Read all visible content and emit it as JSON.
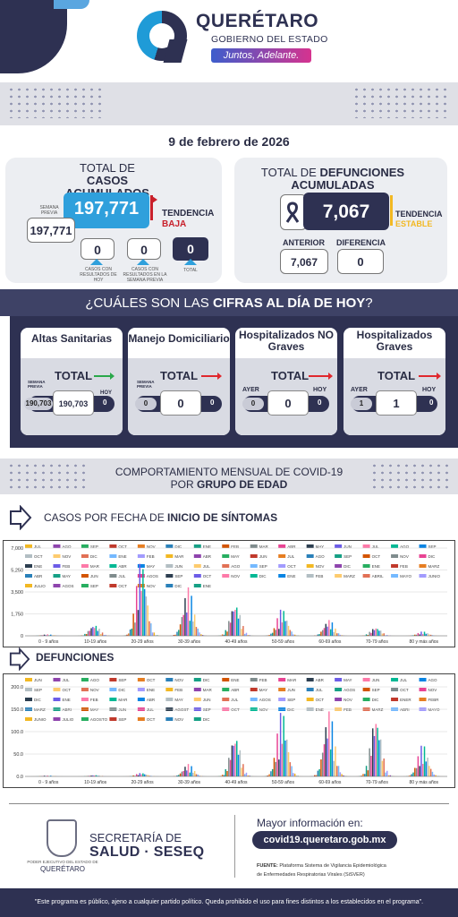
{
  "header": {
    "brand": "QUERÉTARO",
    "subtitle": "GOBIERNO DEL ESTADO",
    "slogan": "Juntos, Adelante."
  },
  "date": "9 de febrero de 2026",
  "casos": {
    "title_line1": "TOTAL DE",
    "title_line2": "CASOS ACUMULADOS",
    "main_value": "197,771",
    "semana_previa_label": "SEMANA PREVIA",
    "semana_previa_value": "197,771",
    "tendencia_label": "TENDENCIA",
    "tendencia_value": "BAJA",
    "con_resultados_hoy": "0",
    "con_resultados_label": "CASOS CON RESULTADOS DE HOY",
    "semana_previa_resultados": "0",
    "semana_previa_resultados_label": "CASOS CON RESULTADOS EN LA SEMANA PREVIA",
    "total": "0",
    "total_label": "TOTAL"
  },
  "defunciones": {
    "title_line1": "TOTAL DE",
    "title_bold": "DEFUNCIONES",
    "title_line2": "ACUMULADAS",
    "main_value": "7,067",
    "tendencia_label": "TENDENCIA",
    "tendencia_value": "ESTABLE",
    "anterior_label": "ANTERIOR",
    "anterior_value": "7,067",
    "diferencia_label": "DIFERENCIA",
    "diferencia_value": "0"
  },
  "cifras": {
    "title_prefix": "¿CUÁLES SON LAS",
    "title_bold": "CIFRAS AL DÍA DE HOY",
    "title_suffix": "?",
    "cards": [
      {
        "title": "Altas Sanitarias",
        "total_label": "TOTAL",
        "prev_label": "SEMANA PREVIA",
        "prev_value": "190,703",
        "value": "190,703",
        "hoy_label": "HOY",
        "hoy_value": "0",
        "arrow_color": "#2aa84a"
      },
      {
        "title": "Manejo Domiciliario",
        "total_label": "TOTAL",
        "prev_label": "SEMANA PREVIA",
        "prev_value": "0",
        "value": "0",
        "hoy_label": "",
        "hoy_value": "0",
        "arrow_color": "#e0282e"
      },
      {
        "title": "Hospitalizados NO Graves",
        "total_label": "TOTAL",
        "prev_label": "AYER",
        "prev_value": "0",
        "value": "0",
        "hoy_label": "HOY",
        "hoy_value": "0",
        "arrow_color": "#e0282e"
      },
      {
        "title": "Hospitalizados Graves",
        "total_label": "TOTAL",
        "prev_label": "AYER",
        "prev_value": "1",
        "value": "1",
        "hoy_label": "HOY",
        "hoy_value": "0",
        "arrow_color": "#e0282e"
      }
    ]
  },
  "comportamiento": {
    "line1": "COMPORTAMIENTO MENSUAL DE COVID-19",
    "line2_prefix": "POR",
    "line2_bold": "GRUPO DE EDAD"
  },
  "casos_section": {
    "prefix": "CASOS POR FECHA DE",
    "bold": "INICIO DE SÍNTOMAS"
  },
  "defunciones_section": {
    "label": "DEFUNCIONES"
  },
  "chart_data": [
    {
      "type": "bar",
      "title": "",
      "categories": [
        "0 - 9 años",
        "10-19 años",
        "20-29 años",
        "30-39 años",
        "40-49 años",
        "50-59 años",
        "60-69 años",
        "70-79 años",
        "80 y más años"
      ],
      "yticks": [
        "0",
        "1,750",
        "3,500",
        "5,250",
        "7,000"
      ],
      "ylim": [
        0,
        7000
      ],
      "legend": [
        "JUL",
        "AGO",
        "SEP",
        "OCT",
        "NOV",
        "DIC",
        "ENE",
        "FEB",
        "MAR",
        "ABR",
        "MAY",
        "JUN",
        "JUL",
        "AGO",
        "SEP",
        "OCT",
        "NOV",
        "DIC",
        "ENE",
        "FEB",
        "MAR",
        "ABR",
        "MAY",
        "JUN",
        "JUL",
        "AGO",
        "SEP",
        "OCT",
        "NOV",
        "DIC",
        "ENE",
        "FEB",
        "MAR",
        "ABR",
        "MAY",
        "JUN",
        "JUL",
        "AGO",
        "SEP",
        "OCT",
        "NOV",
        "DIC",
        "ENE",
        "FEB",
        "MARZ",
        "ABR",
        "MAY",
        "JUN",
        "JUL",
        "AGOS",
        "SEP",
        "OCT",
        "NOV",
        "DIC",
        "ENE",
        "FEB",
        "MARZ",
        "ABRIL",
        "MAYO",
        "JUNIO",
        "JULIO",
        "AGOS",
        "SEP",
        "OCT",
        "NOV",
        "DIC",
        "ENE"
      ],
      "series_peaks": [
        120,
        900,
        6200,
        3900,
        2700,
        2200,
        1300,
        700,
        350
      ]
    },
    {
      "type": "bar",
      "title": "",
      "categories": [
        "0 - 9 años",
        "10-19 años",
        "20-29 años",
        "30-39 años",
        "40-49 años",
        "50-59 años",
        "60-69 años",
        "70-79 años",
        "80 y más años"
      ],
      "yticks": [
        "0.0",
        "50.0",
        "100.0",
        "150.0",
        "200.0"
      ],
      "ylim": [
        0,
        200
      ],
      "legend": [
        "JUN",
        "JUL",
        "AGO",
        "SEP",
        "OCT",
        "NOV",
        "DIC",
        "ENE",
        "FEB",
        "MAR",
        "ABR",
        "MAY",
        "JUN",
        "JUL",
        "AGO",
        "SEP",
        "OCT",
        "NOV",
        "DIC",
        "ENE",
        "FEB",
        "MAR",
        "ABR",
        "MAY",
        "JUN",
        "JUL",
        "AGOS",
        "SEP",
        "OCT",
        "NOV",
        "DIC",
        "ENE",
        "FEB",
        "MAR",
        "ABR",
        "MAY",
        "JUN",
        "JUL",
        "AGOS",
        "SEP",
        "OCT",
        "NOV",
        "DIC",
        "ENER",
        "FEBR",
        "MARZ",
        "ABRI",
        "MAY",
        "JUN",
        "JUL",
        "AGOST",
        "SEP",
        "OCT",
        "NOV",
        "DIC",
        "ENE",
        "FEB",
        "MARZ",
        "ABRI",
        "MAYO",
        "JUNIO",
        "JULIO",
        "AGOSTO",
        "SEP",
        "OCT",
        "NOV",
        "DIC"
      ],
      "series_peaks": [
        2,
        3,
        8,
        28,
        95,
        150,
        150,
        140,
        72
      ]
    }
  ],
  "footer": {
    "seal_text": "PODER EJECUTIVO DEL ESTADO DE",
    "seal_state": "QUERÉTARO",
    "secretaria": "SECRETARÍA DE",
    "salud": "SALUD · SESEQ",
    "mayor_info": "Mayor información en:",
    "url": "covid19.queretaro.gob.mx",
    "fuente_label": "FUENTE:",
    "fuente_text": "Plataforma Sistema de Vigilancia Epidemiológica",
    "fuente_text2": "de Enfermedades Respiratorias Virales (SiSVER)",
    "disclaimer": "\"Este programa es público, ajeno a cualquier partido político. Queda prohibido el uso para fines distintos a los establecidos en el programa\"."
  }
}
